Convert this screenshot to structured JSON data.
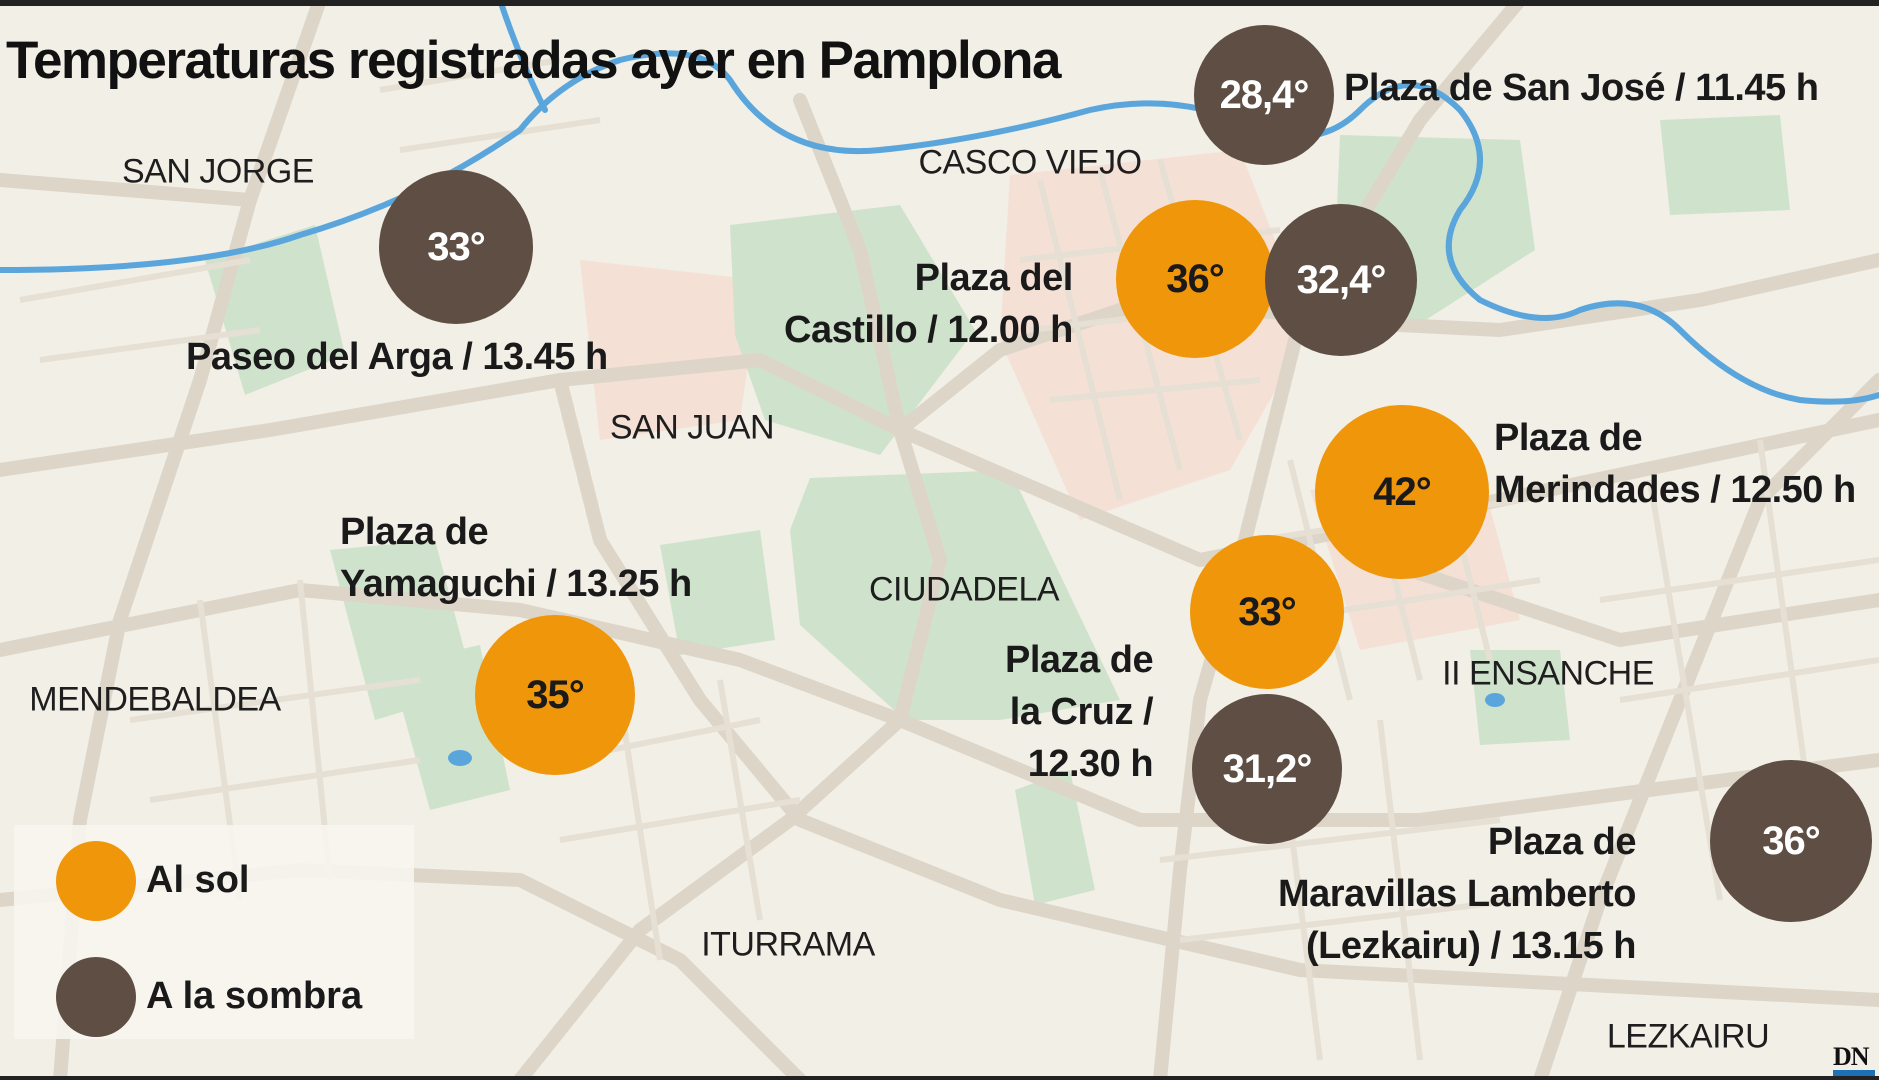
{
  "title": "Temperaturas registradas ayer en Pamplona",
  "districts": {
    "san_jorge": "SAN JORGE",
    "casco_viejo": "CASCO VIEJO",
    "san_juan": "SAN JUAN",
    "ciudadela": "CIUDADELA",
    "mendebaldea": "MENDEBALDEA",
    "ii_ensanche": "II ENSANCHE",
    "iturrama": "ITURRAMA",
    "lezkairu": "LEZKAIRU"
  },
  "locations": {
    "plaza_san_jose": {
      "lines": [
        "Plaza de San José / 11.45 h"
      ],
      "shade": "28,4°"
    },
    "paseo_arga": {
      "lines": [
        "Paseo del Arga / 13.45 h"
      ],
      "shade": "33°"
    },
    "plaza_castillo": {
      "lines": [
        "Plaza del",
        "Castillo / 12.00 h"
      ],
      "sun": "36°",
      "shade": "32,4°"
    },
    "plaza_merindades": {
      "lines": [
        "Plaza de",
        "Merindades / 12.50 h"
      ],
      "sun": "42°"
    },
    "plaza_yamaguchi": {
      "lines": [
        "Plaza de",
        "Yamaguchi / 13.25 h"
      ],
      "sun": "35°"
    },
    "plaza_cruz": {
      "lines": [
        "Plaza de",
        "la Cruz /",
        "12.30 h"
      ],
      "sun": "33°",
      "shade": "31,2°"
    },
    "plaza_maravillas": {
      "lines": [
        "Plaza de",
        "Maravillas Lamberto",
        "(Lezkairu) / 13.15 h"
      ],
      "shade": "36°"
    }
  },
  "legend": {
    "sun": "Al sol",
    "shade": "A la sombra"
  },
  "colors": {
    "sun": "#f0960a",
    "shade": "#5e4e44",
    "river": "#5aa6dc",
    "park": "#cfe3cc",
    "land": "#f2efe6",
    "road": "#ddd5c8"
  },
  "credit": "DN"
}
